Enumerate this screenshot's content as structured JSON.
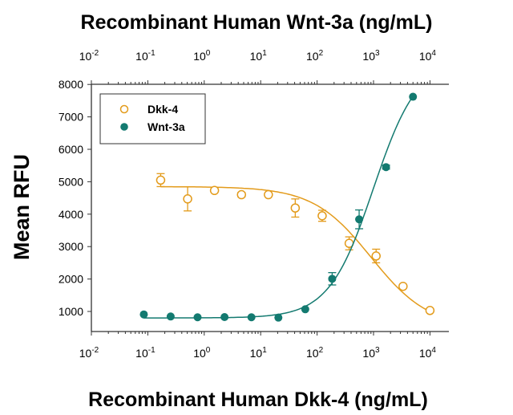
{
  "chart_data": {
    "type": "scatter",
    "top_xlabel": "Recombinant Human Wnt-3a (ng/mL)",
    "xlabel": "Recombinant Human Dkk-4 (ng/mL)",
    "ylabel": "Mean RFU",
    "xscale": "log",
    "xlim": [
      0.01,
      10000
    ],
    "ylim": [
      600,
      8000
    ],
    "xtick_labels": [
      {
        "base": "10",
        "exp": "-2"
      },
      {
        "base": "10",
        "exp": "-1"
      },
      {
        "base": "10",
        "exp": "0"
      },
      {
        "base": "10",
        "exp": "1"
      },
      {
        "base": "10",
        "exp": "2"
      },
      {
        "base": "10",
        "exp": "3"
      },
      {
        "base": "10",
        "exp": "4"
      }
    ],
    "yticks": [
      "1000",
      "2000",
      "3000",
      "4000",
      "5000",
      "6000",
      "7000",
      "8000"
    ],
    "legend_placement": "top-left",
    "series": [
      {
        "name": "Dkk-4",
        "color": "#E39B1B",
        "marker": "open-circle",
        "x": [
          0.169,
          0.508,
          1.52,
          4.57,
          13.7,
          41,
          123,
          370,
          1111,
          3333,
          10000
        ],
        "y": [
          5050,
          4470,
          4730,
          4600,
          4600,
          4190,
          3950,
          3100,
          2710,
          1775,
          1030
        ],
        "err": [
          200,
          370,
          40,
          70,
          40,
          280,
          170,
          200,
          210,
          40,
          30
        ],
        "fit": {
          "bottom": 500,
          "top": 4850,
          "ec50": 900,
          "hill": 0.85
        }
      },
      {
        "name": "Wnt-3a",
        "color": "#137A70",
        "marker": "filled-circle",
        "x": [
          0.085,
          0.254,
          0.762,
          2.29,
          6.86,
          20.6,
          61.7,
          185,
          556,
          1667,
          5000
        ],
        "y": [
          908,
          844,
          820,
          827,
          820,
          810,
          1067,
          2007,
          3840,
          5450,
          7620
        ],
        "err": [
          0,
          0,
          0,
          0,
          0,
          0,
          0,
          190,
          290,
          60,
          0
        ],
        "fit": {
          "bottom": 800,
          "top": 8800,
          "ec50": 1000,
          "hill": 1.1
        }
      }
    ]
  }
}
